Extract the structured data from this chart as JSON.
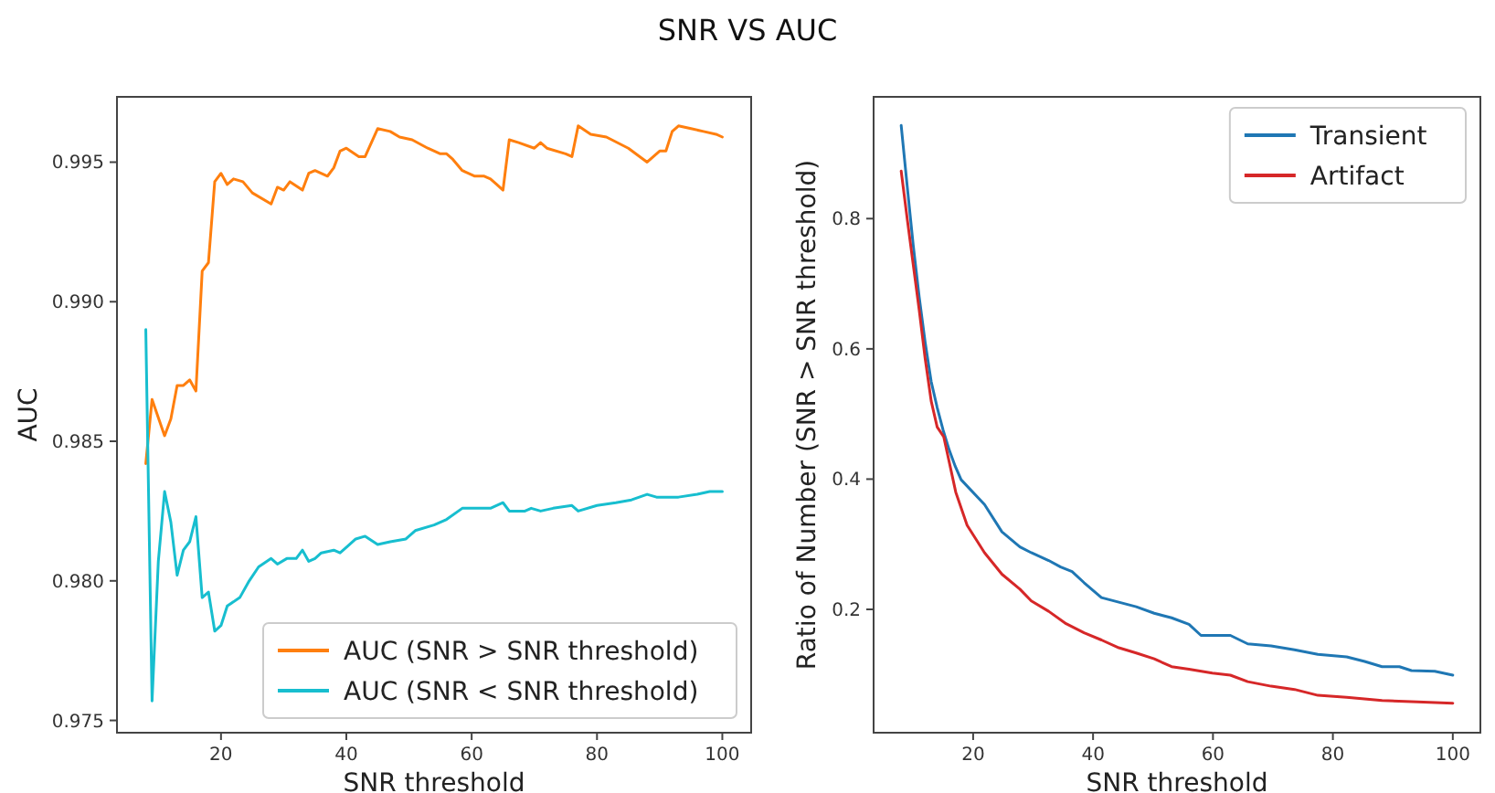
{
  "chart_data": [
    {
      "type": "line",
      "title": "SNR VS AUC",
      "xlabel": "SNR threshold",
      "ylabel": "AUC",
      "xlim": [
        3.4,
        104.6
      ],
      "xticks": [
        20,
        40,
        60,
        80,
        100
      ],
      "ylim": [
        0.97456,
        0.99734
      ],
      "yticks": [
        0.975,
        {
          "value": 0.98,
          "label": "0.980"
        },
        0.985,
        {
          "value": 0.99,
          "label": "0.990"
        },
        0.995
      ],
      "grid": false,
      "legend": "bottom right",
      "series": [
        {
          "name": "AUC (SNR > SNR threshold)",
          "color": "#ff7f0e",
          "x": [
            8,
            9,
            11,
            12,
            13,
            14,
            15,
            16,
            17,
            18,
            19,
            20,
            21,
            22,
            23.5,
            25,
            28,
            29,
            30,
            31,
            33,
            34,
            35,
            37,
            38,
            39,
            40,
            42,
            43,
            45,
            47,
            48.5,
            50.5,
            53,
            55,
            56,
            57,
            58.5,
            60.5,
            62,
            63,
            64,
            65,
            66,
            67.5,
            70,
            71,
            72,
            75,
            76,
            77,
            79,
            81.5,
            85,
            88,
            90,
            91,
            92,
            93,
            95,
            97,
            99,
            100
          ],
          "values": [
            0.9842,
            0.9865,
            0.9852,
            0.9858,
            0.987,
            0.987,
            0.9872,
            0.9868,
            0.9911,
            0.9914,
            0.9943,
            0.9946,
            0.9942,
            0.9944,
            0.9943,
            0.9939,
            0.9935,
            0.9941,
            0.994,
            0.9943,
            0.994,
            0.9946,
            0.9947,
            0.9945,
            0.9948,
            0.9954,
            0.9955,
            0.9952,
            0.9952,
            0.9962,
            0.9961,
            0.9959,
            0.9958,
            0.9955,
            0.9953,
            0.9953,
            0.9951,
            0.9947,
            0.9945,
            0.9945,
            0.9944,
            0.9942,
            0.994,
            0.9958,
            0.9957,
            0.9955,
            0.9957,
            0.9955,
            0.9953,
            0.9952,
            0.9963,
            0.996,
            0.9959,
            0.9955,
            0.995,
            0.9954,
            0.9954,
            0.9961,
            0.9963,
            0.9962,
            0.9961,
            0.996,
            0.9959
          ]
        },
        {
          "name": "AUC (SNR < SNR threshold)",
          "color": "#17becf",
          "x": [
            8,
            9,
            10,
            11,
            12,
            13,
            14,
            15,
            16,
            17,
            18,
            19,
            20,
            21,
            23,
            24.5,
            26,
            28,
            29,
            30.5,
            32,
            33,
            34,
            35,
            36,
            38,
            39,
            40,
            41.5,
            43,
            45,
            47,
            49.5,
            51,
            54,
            56,
            58.5,
            61,
            63,
            65,
            66,
            68.5,
            69.5,
            71,
            73,
            76,
            77,
            80,
            83,
            85.5,
            88,
            89.5,
            93,
            96,
            98,
            100
          ],
          "values": [
            0.989,
            0.9757,
            0.9807,
            0.9832,
            0.9821,
            0.9802,
            0.9811,
            0.9814,
            0.9823,
            0.9794,
            0.9796,
            0.9782,
            0.9784,
            0.9791,
            0.9794,
            0.98,
            0.9805,
            0.9808,
            0.9806,
            0.9808,
            0.9808,
            0.9811,
            0.9807,
            0.9808,
            0.981,
            0.9811,
            0.981,
            0.9812,
            0.9815,
            0.9816,
            0.9813,
            0.9814,
            0.9815,
            0.9818,
            0.982,
            0.9822,
            0.9826,
            0.9826,
            0.9826,
            0.9828,
            0.9825,
            0.9825,
            0.9826,
            0.9825,
            0.9826,
            0.9827,
            0.9825,
            0.9827,
            0.9828,
            0.9829,
            0.9831,
            0.983,
            0.983,
            0.9831,
            0.9832,
            0.9832
          ]
        }
      ]
    },
    {
      "type": "line",
      "xlabel": "SNR threshold",
      "ylabel": "Ratio of Number (SNR > SNR threshold)",
      "xlim": [
        3.4,
        104.6
      ],
      "xticks": [
        20,
        40,
        60,
        80,
        100
      ],
      "ylim": [
        0.0106,
        0.987
      ],
      "yticks": [
        0.2,
        0.4,
        0.6,
        0.8
      ],
      "grid": false,
      "legend": "top right",
      "series": [
        {
          "name": "Transient",
          "color": "#1f77b4",
          "x": [
            8,
            9,
            10,
            11,
            12,
            13,
            14,
            15,
            16,
            17,
            18,
            21.9,
            24.8,
            27.8,
            29.7,
            32.6,
            34.6,
            36.5,
            38.5,
            41.4,
            44.3,
            47.2,
            50.2,
            53.1,
            56,
            58,
            62.9,
            65.8,
            69.7,
            73.6,
            77.5,
            82.3,
            85.3,
            88.2,
            91.1,
            93.1,
            97,
            100
          ],
          "values": [
            0.943,
            0.85,
            0.76,
            0.68,
            0.61,
            0.55,
            0.51,
            0.475,
            0.445,
            0.42,
            0.399,
            0.361,
            0.319,
            0.296,
            0.287,
            0.275,
            0.265,
            0.258,
            0.241,
            0.218,
            0.211,
            0.204,
            0.194,
            0.187,
            0.177,
            0.16,
            0.16,
            0.147,
            0.144,
            0.138,
            0.131,
            0.127,
            0.12,
            0.112,
            0.112,
            0.106,
            0.105,
            0.099
          ]
        },
        {
          "name": "Artifact",
          "color": "#d62728",
          "x": [
            8,
            9,
            10,
            11,
            12,
            13,
            14,
            15.1,
            17.1,
            19,
            21.9,
            24.8,
            27.8,
            29.7,
            32.6,
            35.5,
            38.5,
            41.4,
            44.3,
            47.2,
            50.2,
            53.1,
            56,
            59.9,
            62.9,
            65.8,
            69.7,
            73.6,
            77.5,
            82.3,
            88.2,
            94.1,
            100
          ],
          "values": [
            0.873,
            0.8,
            0.73,
            0.66,
            0.585,
            0.52,
            0.48,
            0.465,
            0.38,
            0.329,
            0.287,
            0.254,
            0.231,
            0.213,
            0.197,
            0.178,
            0.164,
            0.153,
            0.141,
            0.133,
            0.124,
            0.112,
            0.108,
            0.102,
            0.099,
            0.089,
            0.082,
            0.077,
            0.068,
            0.065,
            0.06,
            0.058,
            0.056
          ]
        }
      ]
    }
  ]
}
